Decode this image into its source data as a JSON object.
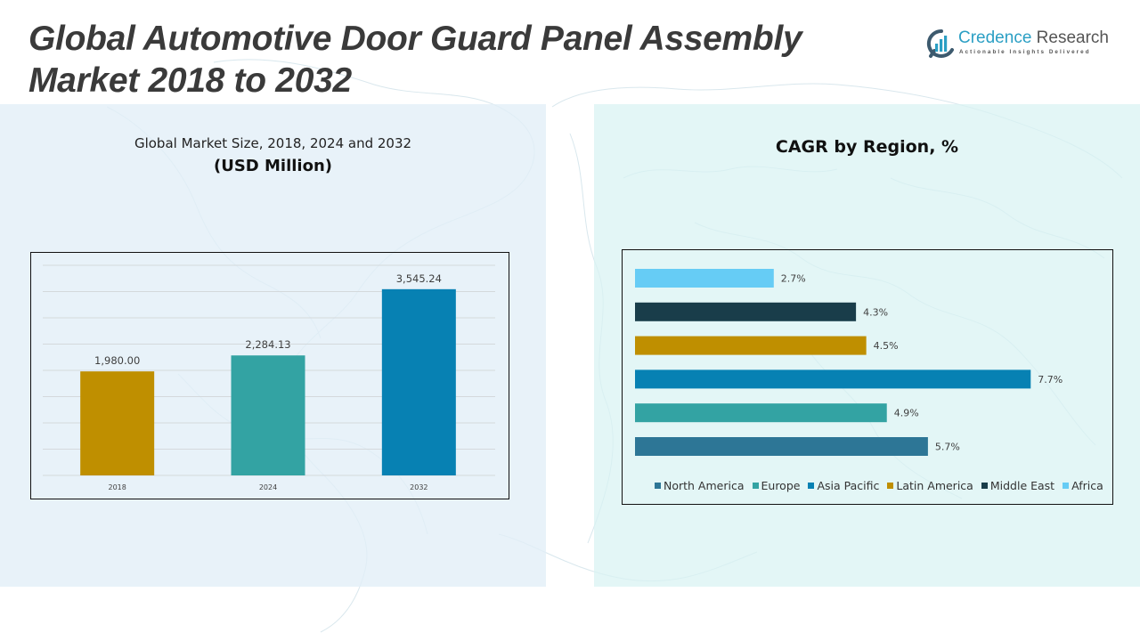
{
  "header": {
    "title_line1": "Global Automotive Door Guard Panel Assembly",
    "title_line2": "Market 2018 to 2032"
  },
  "logo": {
    "icon": "credence-bar-logo-icon",
    "name_part1": "Credence",
    "name_part2": "Research",
    "tagline": "Actionable Insights Delivered"
  },
  "left_panel": {
    "subtitle": "Global Market Size, 2018, 2024 and 2032",
    "unit": "(USD Million)"
  },
  "right_panel": {
    "title": "CAGR by Region, %"
  },
  "chart_data": [
    {
      "type": "bar",
      "title": "Global Market Size, 2018, 2024 and 2032",
      "subtitle": "(USD Million)",
      "xlabel": "",
      "ylabel": "",
      "categories": [
        "2018",
        "2024",
        "2032"
      ],
      "values": [
        1980.0,
        2284.13,
        3545.24
      ],
      "value_labels": [
        "1,980.00",
        "2,284.13",
        "3,545.24"
      ],
      "colors": [
        "#bf8f00",
        "#33a3a3",
        "#0781b3"
      ],
      "ylim": [
        0,
        4000
      ],
      "ytick_step": 500,
      "y_tick_labels_visible": false,
      "grid": true
    },
    {
      "type": "bar",
      "orientation": "horizontal",
      "title": "CAGR by Region, %",
      "categories": [
        "Africa",
        "Middle East",
        "Latin America",
        "Asia Pacific",
        "Europe",
        "North America"
      ],
      "values": [
        2.7,
        4.3,
        4.5,
        7.7,
        4.9,
        5.7
      ],
      "value_labels": [
        "2.7%",
        "4.3%",
        "4.5%",
        "7.7%",
        "4.9%",
        "5.7%"
      ],
      "colors": [
        "#66ccf5",
        "#193d4a",
        "#bf8f00",
        "#0781b3",
        "#33a3a3",
        "#2d7696"
      ],
      "xlim": [
        0,
        8.6
      ],
      "grid": false,
      "legend_position": "bottom",
      "legend": [
        {
          "label": "North America",
          "color": "#2d7696"
        },
        {
          "label": "Europe",
          "color": "#33a3a3"
        },
        {
          "label": "Asia Pacific",
          "color": "#0781b3"
        },
        {
          "label": "Latin America",
          "color": "#bf8f00"
        },
        {
          "label": "Middle East",
          "color": "#193d4a"
        },
        {
          "label": "Africa",
          "color": "#66ccf5"
        }
      ]
    }
  ]
}
